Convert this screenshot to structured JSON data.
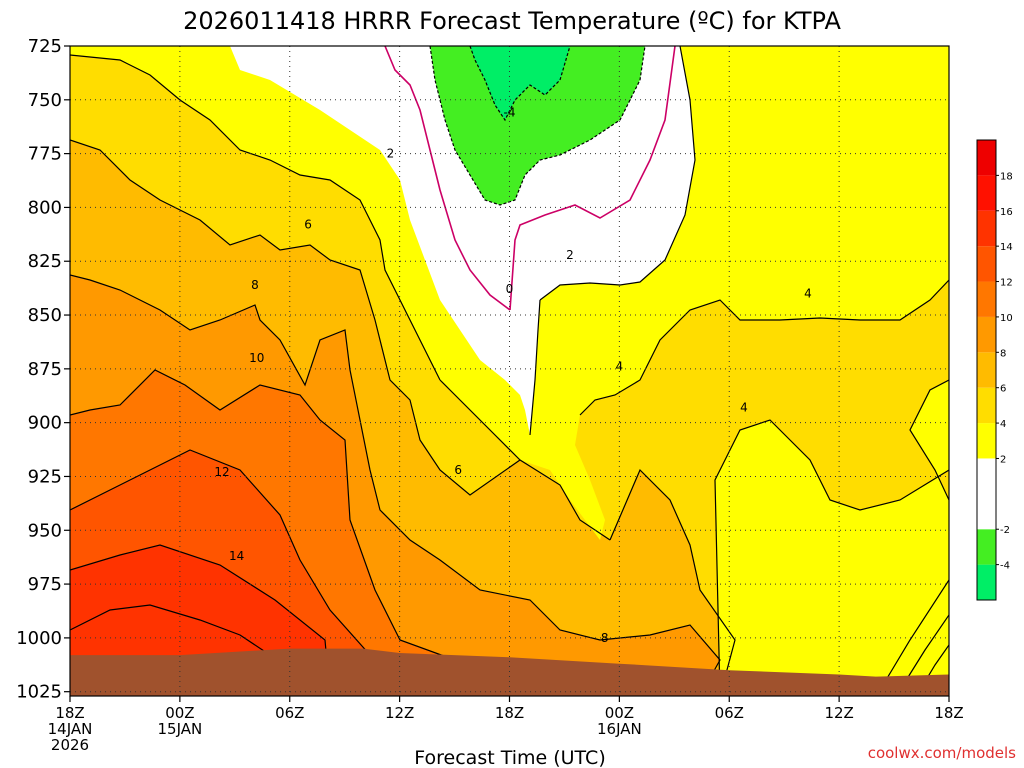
{
  "chart_data": {
    "type": "heatmap",
    "title": "2026011418 HRRR Forecast Temperature (ºC) for KTPA",
    "xlabel": "Forecast Time (UTC)",
    "ylabel": "",
    "credit": "coolwx.com/models",
    "y_ticks": [
      725,
      750,
      775,
      800,
      825,
      850,
      875,
      900,
      925,
      950,
      975,
      1000,
      1025
    ],
    "ylim": [
      725,
      1027
    ],
    "xlim": [
      0,
      48
    ],
    "x_ticks": [
      {
        "hour": 0,
        "lines": [
          "18Z",
          "14JAN",
          "2026"
        ]
      },
      {
        "hour": 6,
        "lines": [
          "00Z",
          "15JAN"
        ]
      },
      {
        "hour": 12,
        "lines": [
          "06Z"
        ]
      },
      {
        "hour": 18,
        "lines": [
          "12Z"
        ]
      },
      {
        "hour": 24,
        "lines": [
          "18Z"
        ]
      },
      {
        "hour": 30,
        "lines": [
          "00Z",
          "16JAN"
        ]
      },
      {
        "hour": 36,
        "lines": [
          "06Z"
        ]
      },
      {
        "hour": 42,
        "lines": [
          "12Z"
        ]
      },
      {
        "hour": 48,
        "lines": [
          "18Z"
        ]
      }
    ],
    "grid": true,
    "colorbar": {
      "placement": "right",
      "bins": [
        {
          "min": -6,
          "max": -4,
          "color": "#00ee66"
        },
        {
          "min": -4,
          "max": -2,
          "color": "#44ee22"
        },
        {
          "min": -2,
          "max": 0,
          "color": "#ffffff"
        },
        {
          "min": 0,
          "max": 2,
          "color": "#ffffff"
        },
        {
          "min": 2,
          "max": 4,
          "color": "#ffff00"
        },
        {
          "min": 4,
          "max": 6,
          "color": "#ffdd00"
        },
        {
          "min": 6,
          "max": 8,
          "color": "#ffbb00"
        },
        {
          "min": 8,
          "max": 10,
          "color": "#ff9900"
        },
        {
          "min": 10,
          "max": 12,
          "color": "#ff7700"
        },
        {
          "min": 12,
          "max": 14,
          "color": "#ff5500"
        },
        {
          "min": 14,
          "max": 16,
          "color": "#ff3300"
        },
        {
          "min": 16,
          "max": 18,
          "color": "#ff1100"
        },
        {
          "min": 18,
          "max": 20,
          "color": "#ee0000"
        }
      ],
      "labels": [
        18,
        16,
        14,
        12,
        10,
        8,
        6,
        4,
        2,
        -2,
        -4
      ]
    },
    "contour_labels": [
      {
        "value": "2",
        "hour": 17.5,
        "p": 775
      },
      {
        "value": "-4",
        "hour": 24,
        "p": 756
      },
      {
        "value": "6",
        "hour": 13,
        "p": 808
      },
      {
        "value": "8",
        "hour": 10.1,
        "p": 836
      },
      {
        "value": "0",
        "hour": 24,
        "p": 838
      },
      {
        "value": "2",
        "hour": 27.3,
        "p": 822
      },
      {
        "value": "10",
        "hour": 10.2,
        "p": 870
      },
      {
        "value": "4",
        "hour": 30,
        "p": 874
      },
      {
        "value": "4",
        "hour": 40.3,
        "p": 840
      },
      {
        "value": "4",
        "hour": 36.8,
        "p": 893
      },
      {
        "value": "12",
        "hour": 8.3,
        "p": 923
      },
      {
        "value": "6",
        "hour": 21.2,
        "p": 922
      },
      {
        "value": "14",
        "hour": 9.1,
        "p": 962
      },
      {
        "value": "8",
        "hour": 29.2,
        "p": 1000
      }
    ],
    "surface": [
      [
        0,
        1008
      ],
      [
        6,
        1008
      ],
      [
        12,
        1005
      ],
      [
        16,
        1005
      ],
      [
        18,
        1007
      ],
      [
        24,
        1009
      ],
      [
        30,
        1012
      ],
      [
        36,
        1015
      ],
      [
        42,
        1017
      ],
      [
        44,
        1018
      ],
      [
        48,
        1017
      ]
    ]
  }
}
